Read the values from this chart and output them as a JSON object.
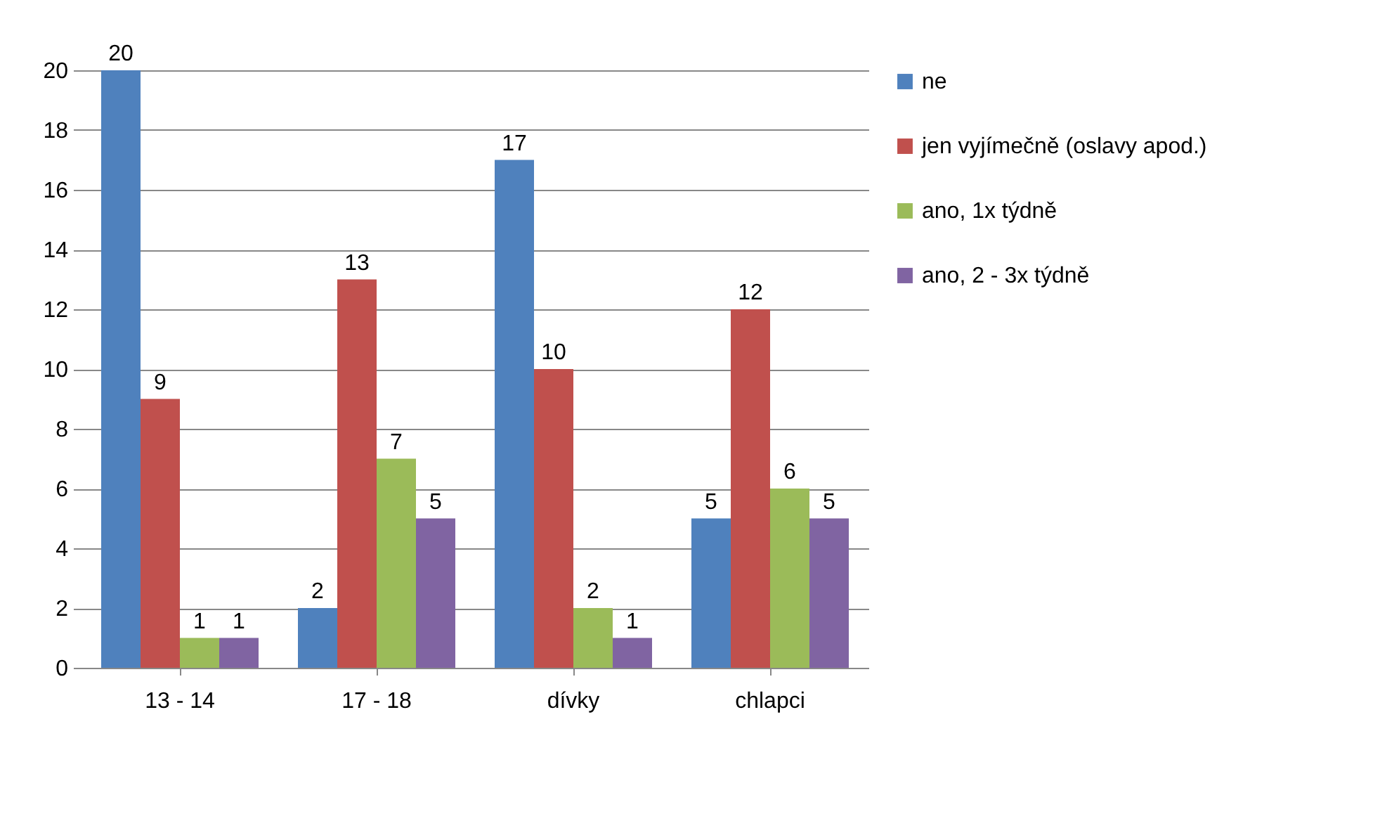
{
  "chart_data": {
    "type": "bar",
    "categories": [
      "13 - 14",
      "17 - 18",
      "dívky",
      "chlapci"
    ],
    "series": [
      {
        "name": "ne",
        "color": "#4f81bd",
        "values": [
          20,
          2,
          17,
          5
        ]
      },
      {
        "name": "jen vyjímečně (oslavy apod.)",
        "color": "#c0504d",
        "values": [
          9,
          13,
          10,
          12
        ]
      },
      {
        "name": "ano, 1x týdně",
        "color": "#9bbb59",
        "values": [
          1,
          7,
          2,
          6
        ]
      },
      {
        "name": "ano, 2 - 3x týdně",
        "color": "#8064a2",
        "values": [
          1,
          5,
          1,
          5
        ]
      }
    ],
    "ylim": [
      0,
      20
    ],
    "yticks": [
      0,
      2,
      4,
      6,
      8,
      10,
      12,
      14,
      16,
      18,
      20
    ],
    "grid": "y",
    "legend": "right",
    "data_labels": true
  }
}
